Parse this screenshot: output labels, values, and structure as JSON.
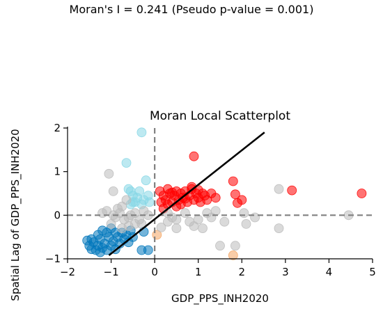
{
  "figure": {
    "suptitle": "Moran's I = 0.241 (Pseudo p-value = 0.001)"
  },
  "chart_data": {
    "type": "scatter",
    "title": "Moran Local Scatterplot",
    "xlabel": "GDP_PPS_INH2020",
    "ylabel": "Spatial Lag of GDP_PPS_INH2020",
    "xlim": [
      -2,
      5
    ],
    "ylim": [
      -1,
      2
    ],
    "xticks": [
      -2,
      -1,
      0,
      1,
      2,
      3,
      4,
      5
    ],
    "yticks": [
      -1,
      0,
      1,
      2
    ],
    "grid": false,
    "reference_lines": {
      "x": 0,
      "y": 0,
      "style": "dashed",
      "color": "#808080"
    },
    "fit_line": {
      "x": [
        -1.05,
        2.52
      ],
      "y": [
        -0.92,
        1.9
      ],
      "color": "#000000"
    },
    "series": [
      {
        "color": "#ff0000",
        "points": [
          [
            0.12,
            0.55
          ],
          [
            0.2,
            0.45
          ],
          [
            0.25,
            0.35
          ],
          [
            0.3,
            0.6
          ],
          [
            0.35,
            0.5
          ],
          [
            0.4,
            0.3
          ],
          [
            0.45,
            0.45
          ],
          [
            0.5,
            0.55
          ],
          [
            0.55,
            0.35
          ],
          [
            0.6,
            0.5
          ],
          [
            0.65,
            0.4
          ],
          [
            0.7,
            0.55
          ],
          [
            0.75,
            0.3
          ],
          [
            0.8,
            0.45
          ],
          [
            0.85,
            0.6
          ],
          [
            0.9,
            0.35
          ],
          [
            0.95,
            0.5
          ],
          [
            1.0,
            0.4
          ],
          [
            1.05,
            0.3
          ],
          [
            1.1,
            0.5
          ],
          [
            1.15,
            0.45
          ],
          [
            1.2,
            0.35
          ],
          [
            1.3,
            0.5
          ],
          [
            1.4,
            0.4
          ],
          [
            0.3,
            0.25
          ],
          [
            0.5,
            0.2
          ],
          [
            0.15,
            0.3
          ],
          [
            0.6,
            0.25
          ],
          [
            0.85,
            0.65
          ],
          [
            0.2,
            0.15
          ],
          [
            0.9,
            1.35
          ],
          [
            1.8,
            0.78
          ],
          [
            1.85,
            0.48
          ],
          [
            2.0,
            0.35
          ],
          [
            1.9,
            0.28
          ],
          [
            3.15,
            0.57
          ],
          [
            4.75,
            0.5
          ],
          [
            0.4,
            0.52
          ],
          [
            0.7,
            0.38
          ],
          [
            1.0,
            0.58
          ]
        ]
      },
      {
        "color": "#0077bb",
        "points": [
          [
            -1.55,
            -0.58
          ],
          [
            -1.5,
            -0.7
          ],
          [
            -1.45,
            -0.78
          ],
          [
            -1.4,
            -0.62
          ],
          [
            -1.35,
            -0.8
          ],
          [
            -1.3,
            -0.7
          ],
          [
            -1.25,
            -0.55
          ],
          [
            -1.2,
            -0.75
          ],
          [
            -1.15,
            -0.65
          ],
          [
            -1.1,
            -0.8
          ],
          [
            -1.05,
            -0.5
          ],
          [
            -1.0,
            -0.7
          ],
          [
            -0.95,
            -0.6
          ],
          [
            -0.9,
            -0.78
          ],
          [
            -0.85,
            -0.5
          ],
          [
            -0.8,
            -0.65
          ],
          [
            -0.75,
            -0.4
          ],
          [
            -0.7,
            -0.55
          ],
          [
            -0.65,
            -0.45
          ],
          [
            -0.6,
            -0.62
          ],
          [
            -0.55,
            -0.35
          ],
          [
            -0.5,
            -0.5
          ],
          [
            -1.3,
            -0.45
          ],
          [
            -1.2,
            -0.35
          ],
          [
            -1.1,
            -0.4
          ],
          [
            -1.0,
            -0.3
          ],
          [
            -0.9,
            -0.4
          ],
          [
            -0.3,
            -0.8
          ],
          [
            -0.15,
            -0.8
          ],
          [
            -0.25,
            -0.38
          ],
          [
            -1.45,
            -0.55
          ],
          [
            -1.25,
            -0.85
          ]
        ]
      },
      {
        "color": "#87d7e6",
        "points": [
          [
            -0.3,
            1.9
          ],
          [
            -0.65,
            1.2
          ],
          [
            -0.6,
            0.6
          ],
          [
            -0.55,
            0.55
          ],
          [
            -0.5,
            0.45
          ],
          [
            -0.45,
            0.3
          ],
          [
            -0.4,
            0.4
          ],
          [
            -0.35,
            0.55
          ],
          [
            -0.3,
            0.25
          ],
          [
            -0.25,
            0.35
          ],
          [
            -0.2,
            0.8
          ],
          [
            -0.15,
            0.45
          ],
          [
            -0.12,
            0.3
          ],
          [
            -0.55,
            0.25
          ],
          [
            -0.5,
            0.3
          ]
        ]
      },
      {
        "color": "#f4a460",
        "points": [
          [
            0.05,
            -0.45
          ],
          [
            1.8,
            -0.92
          ]
        ]
      },
      {
        "color": "#bbbbbb",
        "points": [
          [
            -1.05,
            0.95
          ],
          [
            -0.95,
            0.55
          ],
          [
            -0.75,
            0.2
          ],
          [
            -0.65,
            0.35
          ],
          [
            -0.85,
            0.15
          ],
          [
            -1.2,
            0.05
          ],
          [
            -1.1,
            0.1
          ],
          [
            -0.95,
            0.0
          ],
          [
            -0.9,
            -0.05
          ],
          [
            -0.8,
            0.05
          ],
          [
            -0.7,
            -0.1
          ],
          [
            -0.6,
            -0.05
          ],
          [
            -0.55,
            0.0
          ],
          [
            -0.45,
            0.05
          ],
          [
            -0.35,
            -0.1
          ],
          [
            -0.25,
            0.1
          ],
          [
            -0.15,
            0.0
          ],
          [
            -0.45,
            -0.2
          ],
          [
            -0.3,
            -0.2
          ],
          [
            -0.6,
            -0.25
          ],
          [
            -0.75,
            -0.3
          ],
          [
            -1.0,
            -0.2
          ],
          [
            0.3,
            0.05
          ],
          [
            0.5,
            -0.1
          ],
          [
            0.8,
            -0.15
          ],
          [
            1.0,
            -0.1
          ],
          [
            1.1,
            -0.3
          ],
          [
            1.2,
            0.05
          ],
          [
            1.3,
            -0.05
          ],
          [
            1.6,
            -0.15
          ],
          [
            2.1,
            -0.2
          ],
          [
            2.3,
            -0.05
          ],
          [
            1.5,
            -0.7
          ],
          [
            0.5,
            -0.3
          ],
          [
            0.3,
            -0.15
          ],
          [
            2.05,
            0.05
          ],
          [
            2.85,
            0.6
          ],
          [
            2.85,
            -0.3
          ],
          [
            4.45,
            0.0
          ],
          [
            1.85,
            -0.7
          ],
          [
            0.4,
            -0.05
          ],
          [
            0.7,
            0.05
          ],
          [
            0.15,
            -0.28
          ],
          [
            0.9,
            -0.25
          ],
          [
            1.4,
            0.1
          ]
        ]
      }
    ]
  }
}
